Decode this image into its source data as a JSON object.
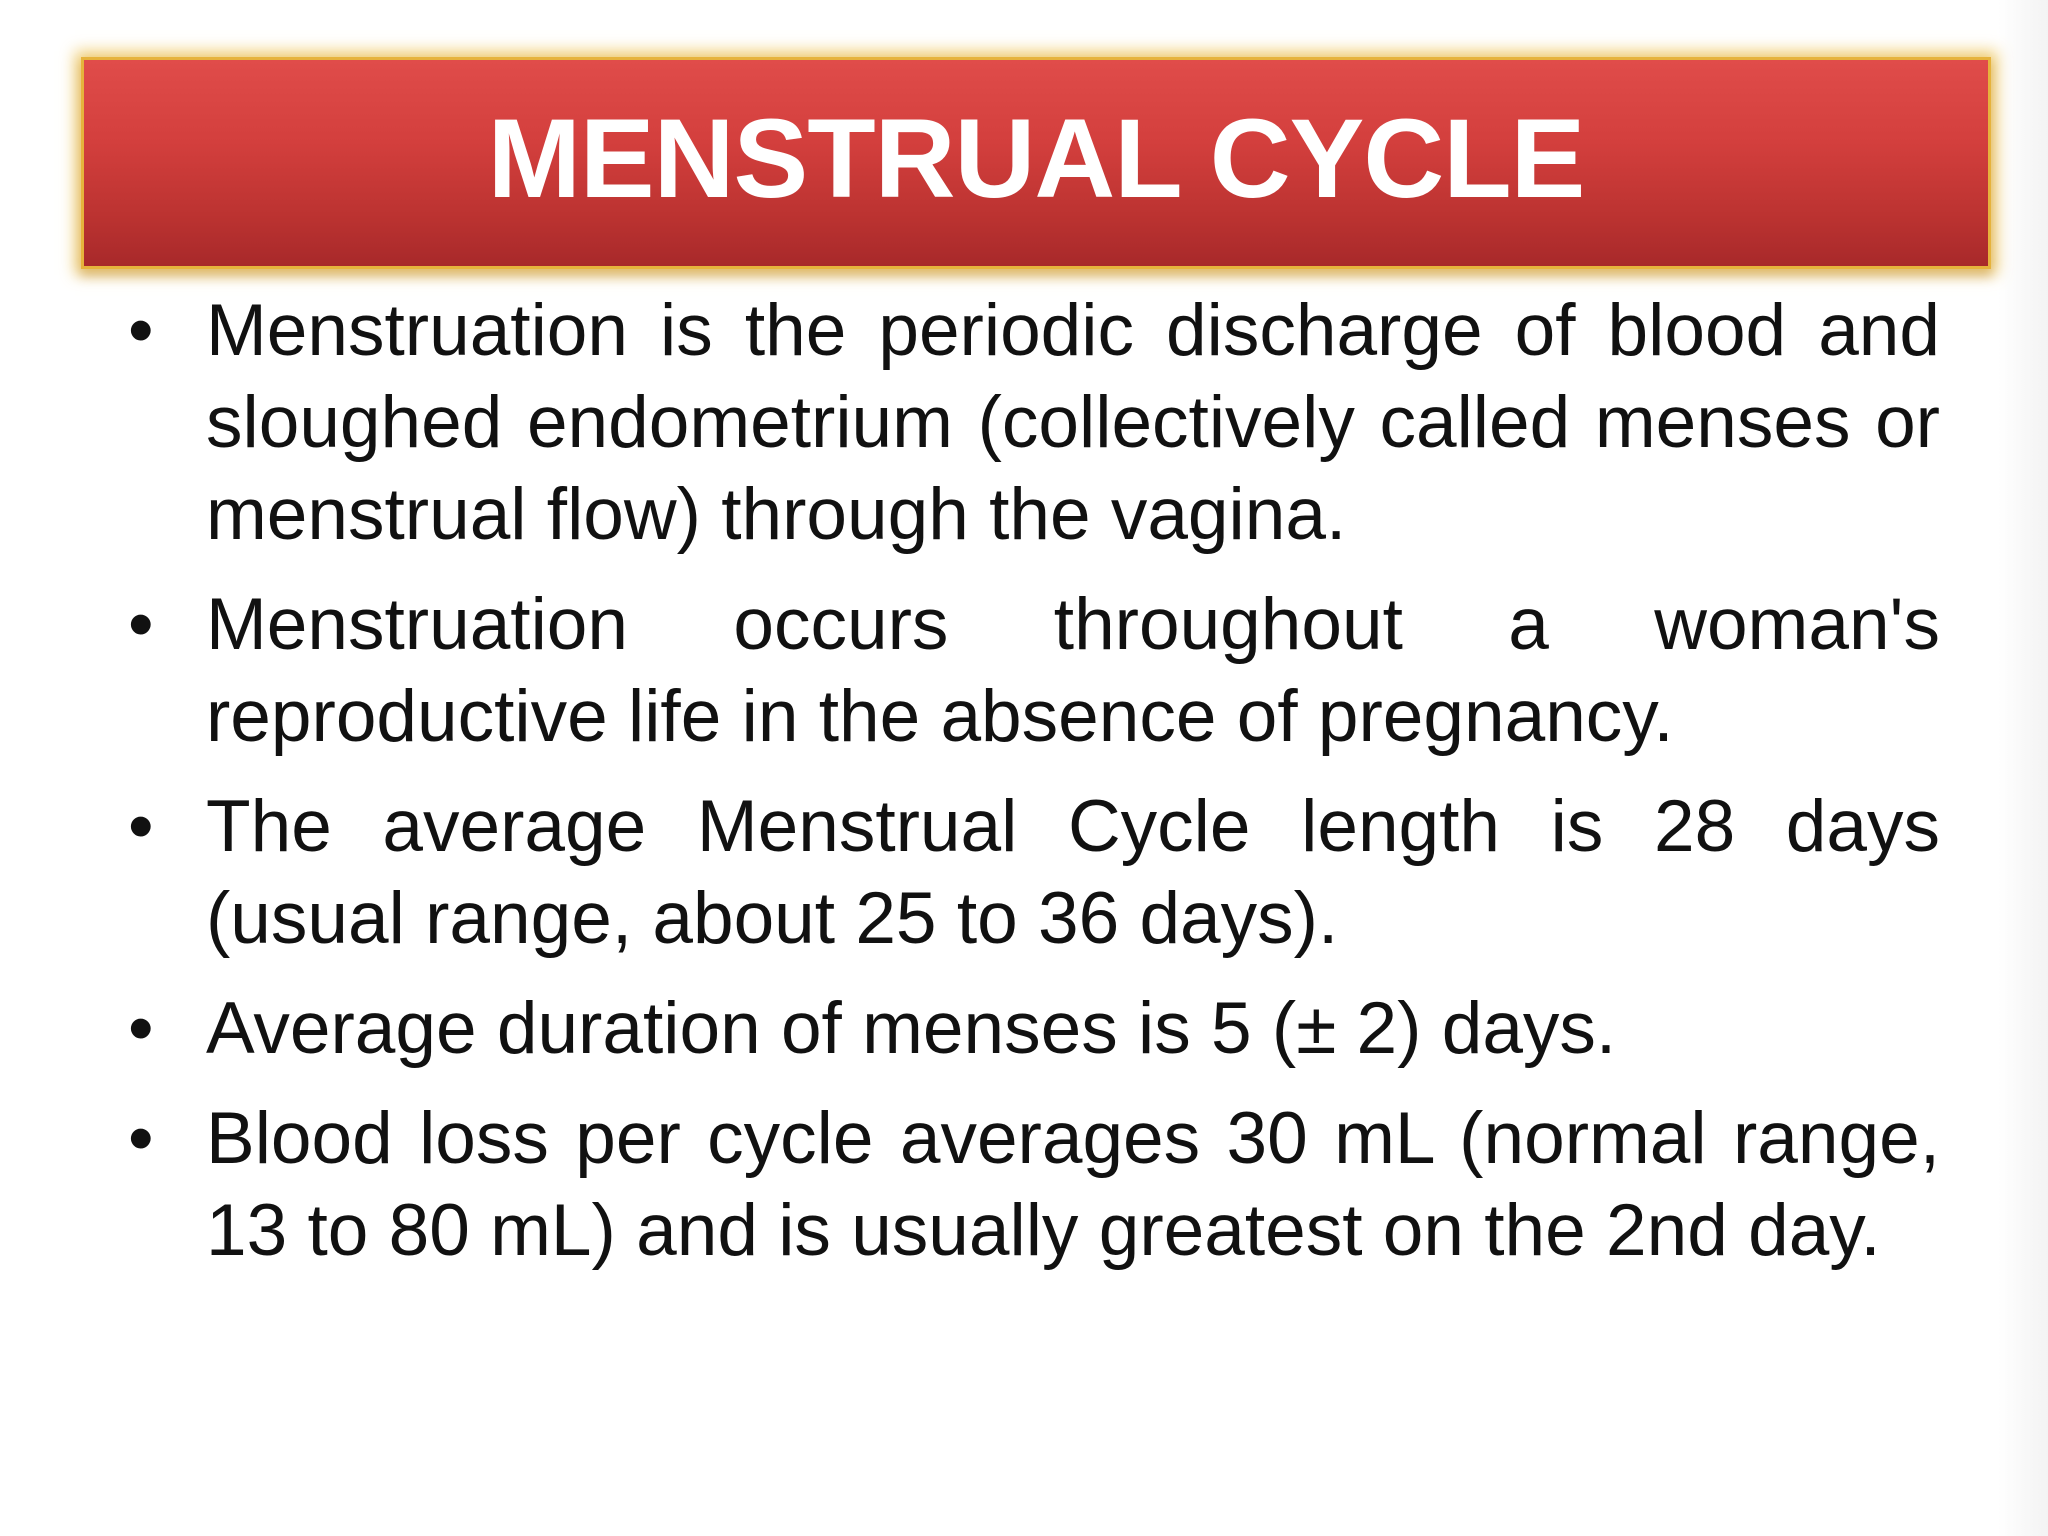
{
  "slide": {
    "title": "MENSTRUAL CYCLE",
    "bullet_symbol": "•",
    "bullets": [
      "Menstruation is the periodic discharge of blood and sloughed endometrium (collectively called menses or menstrual flow) through the vagina.",
      "Menstruation occurs throughout a woman's reproductive life in the absence of pregnancy.",
      "The average Menstrual Cycle length is 28 days (usual range, about 25 to 36 days).",
      "Average duration of menses is 5 (± 2) days.",
      "Blood loss per cycle averages 30 mL (normal range, 13 to 80 mL) and is usually greatest on the 2nd day."
    ]
  },
  "colors": {
    "banner_top": "#e04c4a",
    "banner_bottom": "#a8292a",
    "banner_glow": "#e6b33c",
    "title_text": "#ffffff",
    "body_text": "#111111",
    "background": "#ffffff"
  }
}
